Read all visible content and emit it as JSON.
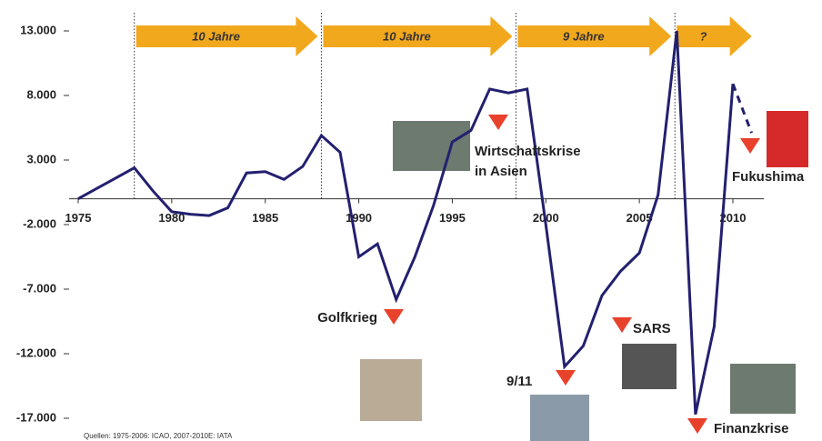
{
  "chart_data": {
    "type": "line",
    "source": "Quellen: 1975-2006: ICAO, 2007-2010E: IATA",
    "x": [
      1975,
      1976,
      1977,
      1978,
      1979,
      1980,
      1981,
      1982,
      1983,
      1984,
      1985,
      1986,
      1987,
      1988,
      1989,
      1990,
      1991,
      1992,
      1993,
      1994,
      1995,
      1996,
      1997,
      1998,
      1999,
      2000,
      2001,
      2002,
      2003,
      2004,
      2005,
      2006,
      2007,
      2008,
      2009,
      2010,
      2011
    ],
    "series": [
      {
        "color": "#232070",
        "dashed": false,
        "values": [
          0,
          800,
          1600,
          2400,
          600,
          -1000,
          -1200,
          -1300,
          -700,
          2000,
          2100,
          1500,
          2500,
          4900,
          3600,
          -4500,
          -3500,
          -7800,
          -4500,
          -500,
          4400,
          5300,
          8500,
          8200,
          8500,
          -2000,
          -13000,
          -11400,
          -7500,
          -5600,
          -4200,
          300,
          13000,
          -16700,
          -9900,
          8900,
          null
        ]
      },
      {
        "color": "#232070",
        "dashed": true,
        "values": [
          null,
          null,
          null,
          null,
          null,
          null,
          null,
          null,
          null,
          null,
          null,
          null,
          null,
          null,
          null,
          null,
          null,
          null,
          null,
          null,
          null,
          null,
          null,
          null,
          null,
          null,
          null,
          null,
          null,
          null,
          null,
          null,
          null,
          null,
          null,
          8900,
          5100
        ]
      }
    ],
    "xlim": [
      1975,
      2011
    ],
    "xticks": [
      1975,
      1980,
      1985,
      1990,
      1995,
      2000,
      2005,
      2010
    ],
    "ylim": [
      -17000,
      13000
    ],
    "yticks": [
      {
        "value": 13000,
        "label": "13.000"
      },
      {
        "value": 8000,
        "label": "8.000"
      },
      {
        "value": 3000,
        "label": "3.000"
      },
      {
        "value": -2000,
        "label": "-2.000"
      },
      {
        "value": -7000,
        "label": "-7.000"
      },
      {
        "value": -12000,
        "label": "-12.000"
      },
      {
        "value": -17000,
        "label": "-17.000"
      }
    ],
    "periods": [
      {
        "label": "10 Jahre",
        "start": 1978,
        "end": 1988
      },
      {
        "label": "10 Jahre",
        "start": 1988,
        "end": 1998.4
      },
      {
        "label": "9 Jahre",
        "start": 1998.4,
        "end": 2006.9
      },
      {
        "label": "?",
        "start": 2006.9,
        "end": 2011.2
      }
    ],
    "events": [
      {
        "lines": [
          "Golfkrieg"
        ]
      },
      {
        "lines": [
          "Wirtschaftskrise",
          "in Asien"
        ]
      },
      {
        "lines": [
          "9/11"
        ]
      },
      {
        "lines": [
          "SARS"
        ]
      },
      {
        "lines": [
          "Finanzkrise"
        ]
      },
      {
        "lines": [
          "Fukushima"
        ]
      }
    ]
  }
}
